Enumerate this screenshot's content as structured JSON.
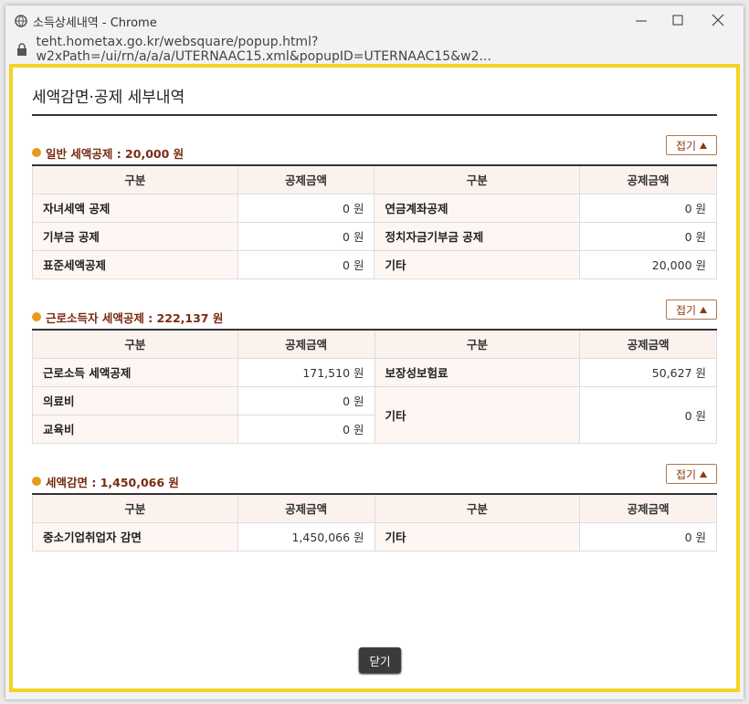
{
  "window": {
    "title": "소득상세내역 - Chrome",
    "url": "teht.hometax.go.kr/websquare/popup.html?w2xPath=/ui/rn/a/a/a/UTERNAAC15.xml&popupID=UTERNAAC15&w2..."
  },
  "page_title": "세액감면·공제 세부내역",
  "sections": [
    {
      "title": "일반 세액공제 : 20,000 원",
      "toggle": "접기",
      "headers": [
        "구분",
        "공제금액",
        "구분",
        "공제금액"
      ],
      "rows": [
        [
          "자녀세액 공제",
          "0 원",
          "연금계좌공제",
          "0 원"
        ],
        [
          "기부금 공제",
          "0 원",
          "정치자금기부금 공제",
          "0 원"
        ],
        [
          "표준세액공제",
          "0 원",
          "기타",
          "20,000 원"
        ]
      ]
    },
    {
      "title": "근로소득자 세액공제 : 222,137 원",
      "toggle": "접기",
      "headers": [
        "구분",
        "공제금액",
        "구분",
        "공제금액"
      ],
      "rows": [
        [
          "근로소득 세액공제",
          "171,510 원",
          "보장성보험료",
          "50,627 원"
        ],
        [
          "의료비",
          "0 원",
          "기타",
          "0 원"
        ],
        [
          "교육비",
          "0 원"
        ]
      ]
    },
    {
      "title": "세액감면 : 1,450,066 원",
      "toggle": "접기",
      "headers": [
        "구분",
        "공제금액",
        "구분",
        "공제금액"
      ],
      "rows": [
        [
          "중소기업취업자 감면",
          "1,450,066 원",
          "기타",
          "0 원"
        ]
      ]
    }
  ],
  "close": "닫기"
}
